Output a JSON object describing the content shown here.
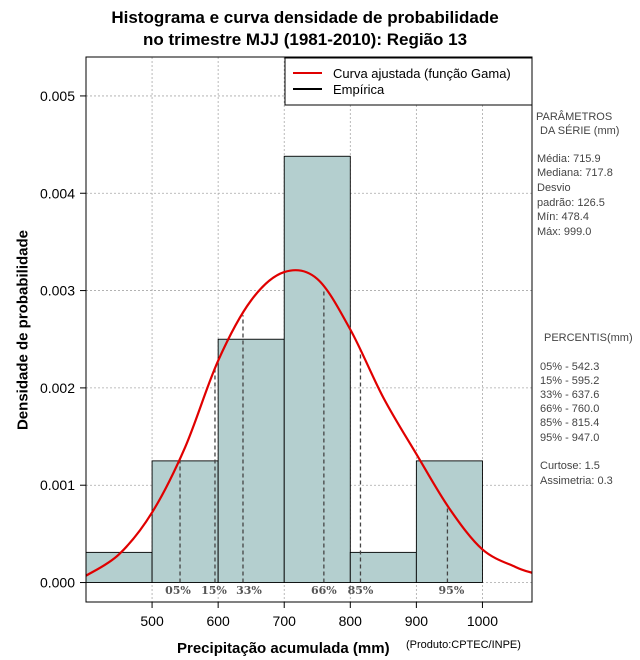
{
  "chart_data": {
    "type": "bar",
    "title": "Histograma e curva densidade de probabilidade",
    "subtitle": "no trimestre MJJ (1981-2010): Região 13",
    "xlabel": "Precipitação acumulada (mm)",
    "ylabel": "Densidade de probabilidade",
    "credit": "(Produto:CPTEC/INPE)",
    "xlim": [
      400,
      1075
    ],
    "ylim": [
      -0.0002,
      0.0054
    ],
    "x_ticks": [
      "500",
      "600",
      "700",
      "800",
      "900",
      "1000"
    ],
    "x_tick_values": [
      500,
      600,
      700,
      800,
      900,
      1000
    ],
    "y_ticks": [
      "0.000",
      "0.001",
      "0.002",
      "0.003",
      "0.004",
      "0.005"
    ],
    "y_tick_values": [
      0,
      0.001,
      0.002,
      0.003,
      0.004,
      0.005
    ],
    "bins": [
      {
        "x0": 400,
        "x1": 500,
        "density": 0.00031
      },
      {
        "x0": 500,
        "x1": 600,
        "density": 0.00125
      },
      {
        "x0": 600,
        "x1": 700,
        "density": 0.0025
      },
      {
        "x0": 700,
        "x1": 800,
        "density": 0.00438
      },
      {
        "x0": 800,
        "x1": 900,
        "density": 0.00031
      },
      {
        "x0": 900,
        "x1": 1000,
        "density": 0.00125
      }
    ],
    "fitted_curve": {
      "name": "Curva ajustada (função Gama)",
      "x": [
        400,
        450,
        500,
        550,
        600,
        650,
        700,
        750,
        800,
        850,
        900,
        950,
        1000,
        1050,
        1075
      ],
      "y": [
        7e-05,
        0.00029,
        0.00072,
        0.00139,
        0.00228,
        0.0029,
        0.00319,
        0.00312,
        0.0026,
        0.0019,
        0.00132,
        0.00076,
        0.00034,
        0.00016,
        0.0001
      ]
    },
    "percentile_lines": [
      {
        "label": "05%",
        "x": 542.3
      },
      {
        "label": "15%",
        "x": 595.2
      },
      {
        "label": "33%",
        "x": 637.6
      },
      {
        "label": "66%",
        "x": 760.0
      },
      {
        "label": "85%",
        "x": 815.4
      },
      {
        "label": "95%",
        "x": 947.0
      }
    ],
    "legend": {
      "position": "top-right",
      "entries": [
        {
          "label": "Curva ajustada (função Gama)",
          "color": "#e00000"
        },
        {
          "label": "Empírica",
          "color": "#000000"
        }
      ]
    },
    "bar_color": "#b4cfcf",
    "grid": true
  },
  "side_panel": {
    "params_header_1": "PARÂMETROS",
    "params_header_2": "DA SÉRIE (mm)",
    "media": "Média:  715.9",
    "mediana": "Mediana:  717.8",
    "desvio_1": "Desvio",
    "desvio_2": "padrão:  126.5",
    "min": "Mín:  478.4",
    "max": "Máx:  999.0",
    "percentis_header": "PERCENTIS(mm)",
    "p05": "05% -  542.3",
    "p15": "15% -  595.2",
    "p33": "33% -  637.6",
    "p66": "66% -  760.0",
    "p85": "85% -  815.4",
    "p95": "95% -  947.0",
    "curtose": "Curtose:  1.5",
    "assimetria": "Assimetria:  0.3"
  }
}
